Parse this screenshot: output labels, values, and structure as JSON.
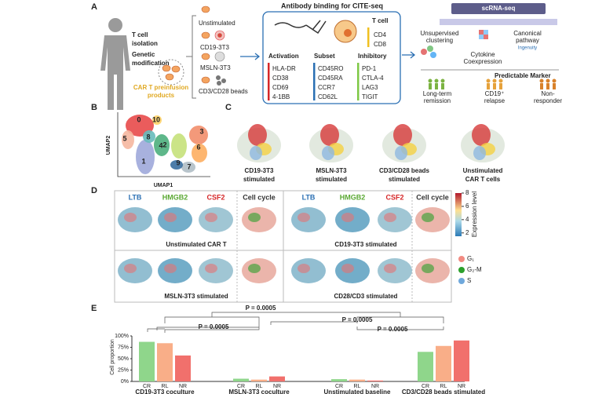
{
  "panel_a": {
    "label": "A",
    "isolation": [
      "T cell",
      "isolation"
    ],
    "modification": [
      "Genetic",
      "modification"
    ],
    "products": [
      "CAR T preinfusion",
      "products"
    ],
    "conditions": [
      "Unstimulated",
      "CD19-3T3",
      "MSLN-3T3",
      "CD3/CD28 beads"
    ],
    "cite_title": "Antibody binding  for CITE-seq",
    "marker_groups": [
      {
        "name": "T cell",
        "markers": [
          "CD4",
          "CD8"
        ]
      },
      {
        "name": "Activation",
        "markers": [
          "HLA-DR",
          "CD38",
          "CD69",
          "4-1BB"
        ]
      },
      {
        "name": "Subset",
        "markers": [
          "CD45RO",
          "CD45RA",
          "CCR7",
          "CD62L"
        ]
      },
      {
        "name": "Inhibitory",
        "markers": [
          "PD-1",
          "CTLA-4",
          "LAG3",
          "TIGIT"
        ]
      }
    ],
    "scrna_title": "scRNA-seq",
    "clustering": [
      "Unsupervised",
      "clustering"
    ],
    "pathway": [
      "Canonical",
      "pathway"
    ],
    "ingenuity": "Ingenuity",
    "cytokine": [
      "Cytokine",
      "Coexpression"
    ],
    "marker_title": "Predictable Marker",
    "outcomes": [
      [
        "Long-term",
        "remission"
      ],
      [
        "CD19⁺",
        "relapse"
      ],
      [
        "Non-",
        "responder"
      ]
    ]
  },
  "panel_b": {
    "label": "B",
    "y_label": "UMAP2",
    "x_label": "UMAP1",
    "clusters": [
      "0",
      "1",
      "2",
      "3",
      "4",
      "5",
      "6",
      "7",
      "8",
      "9",
      "10"
    ]
  },
  "panel_c": {
    "label": "C",
    "conditions": [
      [
        "CD19-3T3",
        "stimulated"
      ],
      [
        "MSLN-3T3",
        "stimulated"
      ],
      [
        "CD3/CD28 beads",
        "stimulated"
      ],
      [
        "Unstimulated",
        "CAR T cells"
      ]
    ]
  },
  "panel_d": {
    "label": "D",
    "columns": [
      "LTB",
      "HMGB2",
      "CSF2",
      "Cell cycle"
    ],
    "conditions": [
      "Unstimulated CAR T",
      "CD19-3T3 stimulated",
      "MSLN-3T3 stimulated",
      "CD28/CD3 stimulated"
    ],
    "colorbar_title": "Expression level",
    "colorbar_lim": [
      1.5,
      8
    ],
    "colorbar_ticks": [
      2,
      4,
      6,
      8
    ],
    "phases": [
      "G₁",
      "G₂-M",
      "S"
    ]
  },
  "chart_data": {
    "type": "bar",
    "label": "E",
    "y_label": "Cell proportion",
    "groups": [
      {
        "name": "CD19-3T3 coculture",
        "categories": [
          "CR",
          "RL",
          "NR"
        ],
        "values": [
          87,
          84,
          57
        ]
      },
      {
        "name": "MSLN-3T3 coculture",
        "categories": [
          "CR",
          "RL",
          "NR"
        ],
        "values": [
          6,
          4,
          11
        ]
      },
      {
        "name": "Unstimulated baseline",
        "categories": [
          "CR",
          "RL",
          "NR"
        ],
        "values": [
          5,
          4,
          2
        ]
      },
      {
        "name": "CD3/CD28 beads stimulated",
        "categories": [
          "CR",
          "RL",
          "NR"
        ],
        "values": [
          65,
          78,
          90
        ]
      }
    ],
    "colors": [
      "#8fd68b",
      "#f9ae88",
      "#f1706c"
    ],
    "ylim": [
      0,
      100
    ],
    "yticks": [
      {
        "value": 0,
        "label": "0%"
      },
      {
        "value": 25,
        "label": "25%"
      },
      {
        "value": 50,
        "label": "50%"
      },
      {
        "value": 75,
        "label": "75%"
      },
      {
        "value": 100,
        "label": "100%"
      }
    ],
    "p_values": [
      "P = 0.0005",
      "P = 0.0005",
      "P = 0.0005",
      "P = 0.0005"
    ]
  }
}
